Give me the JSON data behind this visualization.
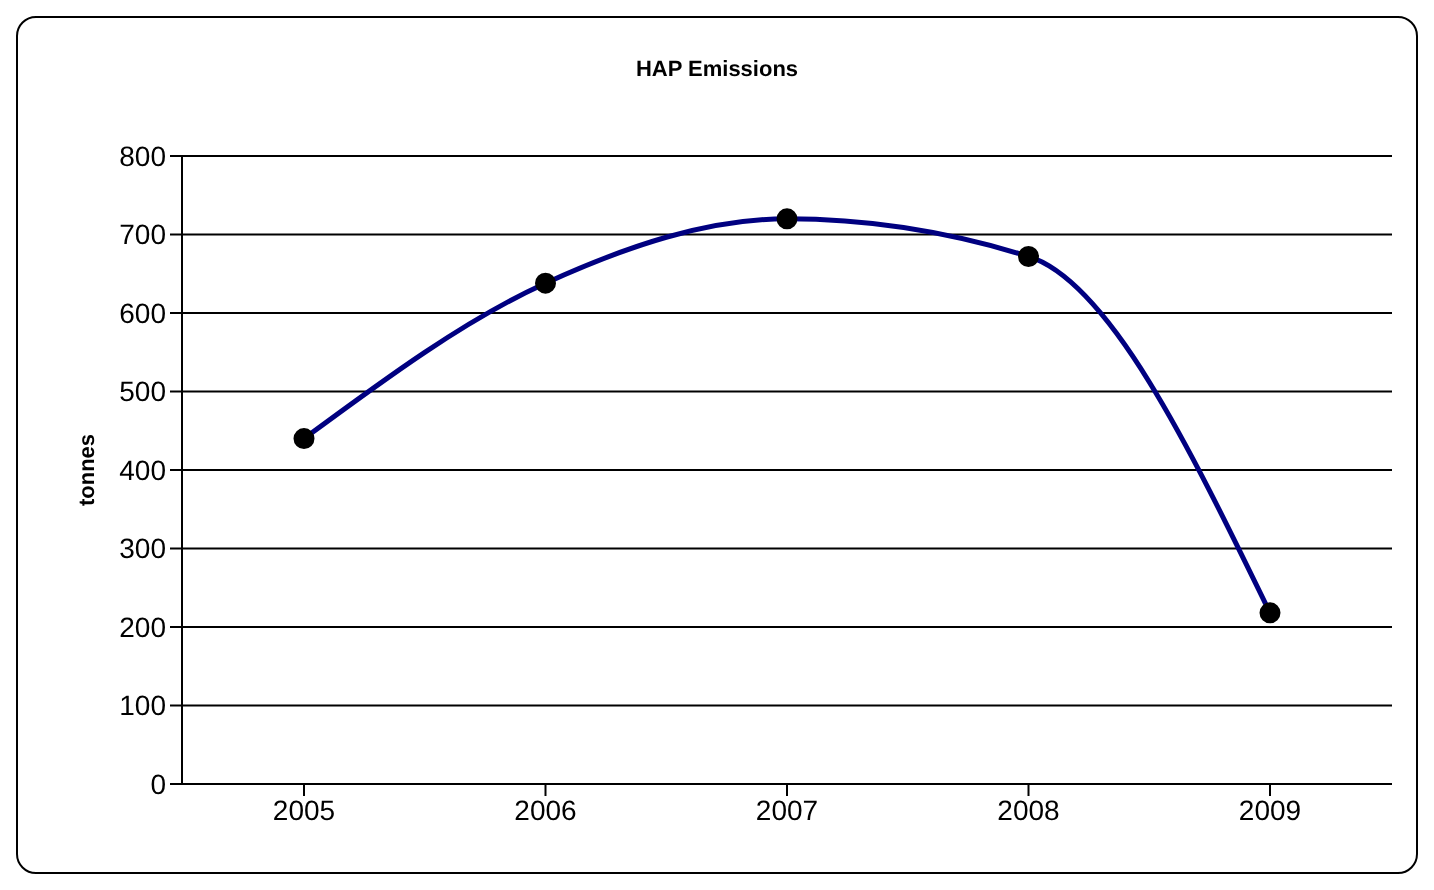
{
  "chart_data": {
    "type": "line",
    "title": "HAP Emissions",
    "ylabel": "tonnes",
    "categories": [
      "2005",
      "2006",
      "2007",
      "2008",
      "2009"
    ],
    "series": [
      {
        "color": "#000080",
        "values": [
          440,
          638,
          720,
          672,
          218
        ]
      }
    ],
    "ylim": [
      0,
      800
    ],
    "yticks": [
      0,
      100,
      200,
      300,
      400,
      500,
      600,
      700,
      800
    ],
    "grid": "y",
    "marker": "circle",
    "legend": false
  }
}
